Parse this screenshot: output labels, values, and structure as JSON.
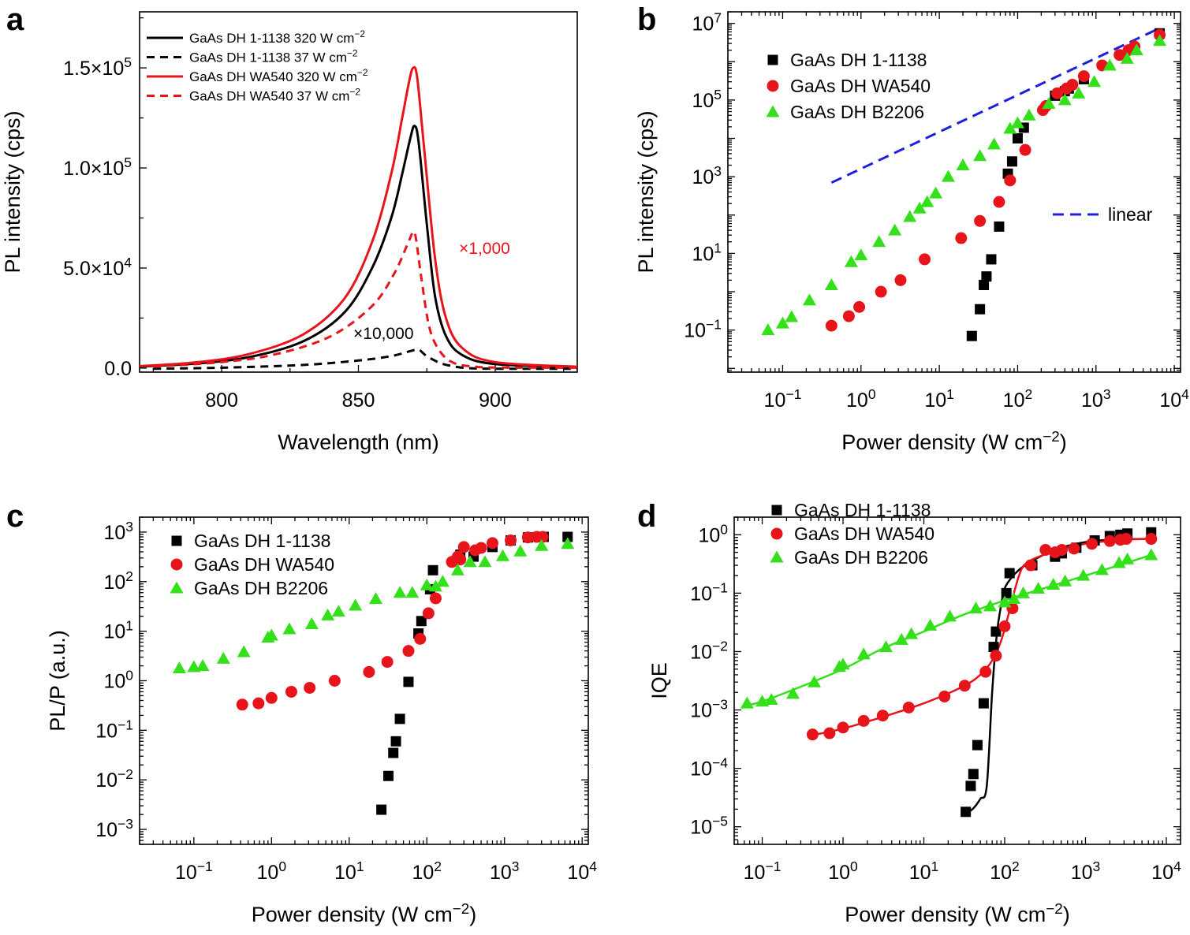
{
  "chart_data": [
    {
      "panel": "a",
      "type": "line",
      "title": "",
      "xlabel": "Wavelength (nm)",
      "ylabel": "PL intensity (cps)",
      "xlim": [
        770,
        930
      ],
      "ylim": [
        -2000,
        178000
      ],
      "x_ticks": [
        "800",
        "850",
        "900"
      ],
      "y_ticks": [
        {
          "mantissa": "0.0",
          "exp": ""
        },
        {
          "mantissa": "5.0×10",
          "exp": "4"
        },
        {
          "mantissa": "1.0×10",
          "exp": "5"
        },
        {
          "mantissa": "1.5×10",
          "exp": "5"
        }
      ],
      "legend_position": "top-left",
      "annotations": [
        {
          "text": "×1,000",
          "color": "#e8141c"
        },
        {
          "text": "×10,000",
          "color": "#000000"
        }
      ],
      "series": [
        {
          "name_text": "GaAs DH 1-1138 320 W cm",
          "name_exp": "−2",
          "color": "#000000",
          "dash": "solid",
          "x": [
            770,
            790,
            810,
            830,
            845,
            855,
            862,
            866,
            869,
            870.5,
            872,
            875,
            878,
            882,
            888,
            900,
            930
          ],
          "y": [
            800,
            2200,
            5500,
            13500,
            28000,
            50000,
            75000,
            97000,
            115000,
            121000,
            113000,
            72000,
            36000,
            16000,
            6500,
            2000,
            500
          ]
        },
        {
          "name_text": "GaAs DH 1-1138 37 W cm",
          "name_exp": "−2",
          "color": "#000000",
          "dash": "dashed",
          "x": [
            775,
            800,
            830,
            850,
            862,
            869,
            872,
            875,
            880,
            885,
            890,
            900,
            930
          ],
          "y": [
            -300,
            200,
            1600,
            3800,
            6000,
            8500,
            9200,
            6000,
            2500,
            800,
            0,
            -300,
            -300
          ]
        },
        {
          "name_text": "GaAs DH WA540 320 W cm",
          "name_exp": "−2",
          "color": "#e8141c",
          "dash": "solid",
          "x": [
            770,
            790,
            810,
            830,
            845,
            855,
            862,
            866,
            868.5,
            870,
            871.5,
            874,
            878,
            882,
            888,
            900,
            930
          ],
          "y": [
            1000,
            2800,
            7000,
            17000,
            35000,
            63000,
            97000,
            125000,
            143000,
            150000,
            145000,
            110000,
            55000,
            25000,
            10000,
            3000,
            700
          ]
        },
        {
          "name_text": "GaAs DH WA540 37 W cm",
          "name_exp": "−2",
          "color": "#e8141c",
          "dash": "dashed",
          "x": [
            775,
            800,
            820,
            840,
            855,
            863,
            868,
            870,
            871,
            873,
            876,
            880,
            885,
            892,
            900,
            930
          ],
          "y": [
            800,
            3000,
            7000,
            16000,
            31000,
            47000,
            62000,
            68000,
            65000,
            45000,
            20000,
            8000,
            2500,
            800,
            300,
            200
          ]
        }
      ]
    },
    {
      "panel": "b",
      "type": "scatter",
      "title": "",
      "xlabel_text": "Power density (W cm",
      "xlabel_exp": "−2",
      "xlabel_close": ")",
      "ylabel": "PL intensity (cps)",
      "x_scale": "log",
      "y_scale": "log",
      "xlim": [
        0.02,
        12000
      ],
      "ylim": [
        0.008,
        20000000
      ],
      "x_ticks": [
        {
          "base": "10",
          "exp": "−1"
        },
        {
          "base": "10",
          "exp": "0"
        },
        {
          "base": "10",
          "exp": "1"
        },
        {
          "base": "10",
          "exp": "2"
        },
        {
          "base": "10",
          "exp": "3"
        },
        {
          "base": "10",
          "exp": "4"
        }
      ],
      "y_ticks": [
        {
          "base": "10",
          "exp": "−1"
        },
        {
          "base": "10",
          "exp": "1"
        },
        {
          "base": "10",
          "exp": "3"
        },
        {
          "base": "10",
          "exp": "5"
        },
        {
          "base": "10",
          "exp": "7"
        }
      ],
      "legend_position": "top-left",
      "reference_line": {
        "name": "linear",
        "color": "#1f1fe0",
        "x": [
          0.42,
          6500
        ],
        "y": [
          700,
          7500000
        ]
      },
      "series": [
        {
          "name": "GaAs DH 1-1138",
          "marker": "square",
          "color": "#000000",
          "x": [
            26,
            33,
            37,
            40,
            46,
            58,
            75,
            85,
            100,
            120,
            300,
            400,
            450,
            700,
            6500
          ],
          "y": [
            0.07,
            0.35,
            1.5,
            2.5,
            7,
            50,
            1200,
            2500,
            10000,
            19000,
            130000,
            170000,
            200000,
            350000,
            5500000
          ]
        },
        {
          "name": "GaAs DH WA540",
          "marker": "circle",
          "color": "#e8141c",
          "x": [
            0.42,
            0.7,
            0.95,
            1.8,
            3.2,
            6.5,
            19,
            33,
            58,
            80,
            125,
            210,
            230,
            320,
            420,
            500,
            700,
            1200,
            2000,
            2600,
            3100,
            6500
          ],
          "y": [
            0.13,
            0.23,
            0.4,
            1,
            2,
            7,
            25,
            70,
            220,
            800,
            5000,
            55000,
            70000,
            150000,
            200000,
            250000,
            420000,
            800000,
            1500000,
            2000000,
            2500000,
            5000000
          ]
        },
        {
          "name": "GaAs DH B2206",
          "marker": "triangle",
          "color": "#33e01a",
          "x": [
            0.065,
            0.1,
            0.13,
            0.22,
            0.42,
            0.75,
            1.0,
            1.7,
            2.7,
            4.2,
            5.6,
            7.0,
            9.0,
            13,
            20,
            33,
            50,
            80,
            100,
            140,
            250,
            400,
            600,
            950,
            1500,
            2500,
            3300,
            6500
          ],
          "y": [
            0.1,
            0.15,
            0.22,
            0.6,
            1.5,
            6,
            9,
            20,
            40,
            90,
            150,
            220,
            370,
            1000,
            2000,
            3500,
            7000,
            18000,
            25000,
            40000,
            80000,
            100000,
            150000,
            300000,
            800000,
            1200000,
            2000000,
            3500000
          ]
        }
      ]
    },
    {
      "panel": "c",
      "type": "scatter",
      "title": "",
      "xlabel_text": "Power density (W cm",
      "xlabel_exp": "−2",
      "xlabel_close": ")",
      "ylabel": "PL/P (a.u.)",
      "x_scale": "log",
      "y_scale": "log",
      "xlim": [
        0.02,
        12000
      ],
      "ylim": [
        0.0005,
        2000
      ],
      "x_ticks": [
        {
          "base": "10",
          "exp": "−1"
        },
        {
          "base": "10",
          "exp": "0"
        },
        {
          "base": "10",
          "exp": "1"
        },
        {
          "base": "10",
          "exp": "2"
        },
        {
          "base": "10",
          "exp": "3"
        },
        {
          "base": "10",
          "exp": "4"
        }
      ],
      "y_ticks": [
        {
          "base": "10",
          "exp": "−3"
        },
        {
          "base": "10",
          "exp": "−2"
        },
        {
          "base": "10",
          "exp": "−1"
        },
        {
          "base": "10",
          "exp": "0"
        },
        {
          "base": "10",
          "exp": "1"
        },
        {
          "base": "10",
          "exp": "2"
        },
        {
          "base": "10",
          "exp": "3"
        }
      ],
      "legend_position": "top-left",
      "series": [
        {
          "name": "GaAs DH 1-1138",
          "marker": "square",
          "color": "#000000",
          "x": [
            26,
            32,
            37,
            40,
            45,
            58,
            78,
            85,
            110,
            120,
            270,
            400,
            700,
            1200,
            2000,
            3200,
            6500
          ],
          "y": [
            0.0025,
            0.012,
            0.035,
            0.06,
            0.17,
            0.95,
            9,
            16,
            70,
            170,
            350,
            320,
            500,
            680,
            780,
            800,
            800
          ]
        },
        {
          "name": "GaAs DH WA540",
          "marker": "circle",
          "color": "#e8141c",
          "x": [
            0.42,
            0.68,
            1.0,
            1.8,
            3.1,
            6.5,
            18,
            31,
            58,
            82,
            105,
            130,
            210,
            250,
            270,
            300,
            420,
            500,
            700,
            1200,
            2000,
            2600,
            3100
          ],
          "y": [
            0.33,
            0.35,
            0.45,
            0.6,
            0.72,
            1.0,
            1.5,
            2.4,
            4.0,
            7.0,
            23,
            46,
            250,
            320,
            280,
            500,
            430,
            480,
            600,
            680,
            780,
            800,
            800
          ]
        },
        {
          "name": "GaAs DH B2206",
          "marker": "triangle",
          "color": "#33e01a",
          "x": [
            0.065,
            0.1,
            0.13,
            0.24,
            0.44,
            0.9,
            1.0,
            1.7,
            3.3,
            5.3,
            7.3,
            12,
            22,
            45,
            65,
            100,
            130,
            160,
            250,
            360,
            560,
            950,
            1600,
            3000,
            6500
          ],
          "y": [
            1.8,
            1.9,
            2.0,
            2.8,
            3.8,
            7.5,
            8.2,
            11,
            14,
            21,
            25,
            33,
            45,
            60,
            60,
            85,
            80,
            100,
            170,
            250,
            250,
            330,
            410,
            530,
            580
          ]
        }
      ]
    },
    {
      "panel": "d",
      "type": "scatter",
      "title": "",
      "xlabel_text": "Power density (W cm",
      "xlabel_exp": "−2",
      "xlabel_close": ")",
      "ylabel": "IQE",
      "x_scale": "log",
      "y_scale": "log",
      "xlim": [
        0.045,
        15000
      ],
      "ylim": [
        5e-06,
        2
      ],
      "x_ticks": [
        {
          "base": "10",
          "exp": "−1"
        },
        {
          "base": "10",
          "exp": "0"
        },
        {
          "base": "10",
          "exp": "1"
        },
        {
          "base": "10",
          "exp": "2"
        },
        {
          "base": "10",
          "exp": "3"
        },
        {
          "base": "10",
          "exp": "4"
        }
      ],
      "y_ticks": [
        {
          "base": "10",
          "exp": "−5"
        },
        {
          "base": "10",
          "exp": "−4"
        },
        {
          "base": "10",
          "exp": "−3"
        },
        {
          "base": "10",
          "exp": "−2"
        },
        {
          "base": "10",
          "exp": "−1"
        },
        {
          "base": "10",
          "exp": "0"
        }
      ],
      "legend_position": "top-left",
      "series": [
        {
          "name": "GaAs DH 1-1138",
          "marker": "square",
          "color": "#000000",
          "x": [
            33,
            38,
            41,
            46,
            55,
            73,
            78,
            105,
            115,
            220,
            420,
            510,
            770,
            1300,
            2000,
            2700,
            3300,
            6500
          ],
          "y": [
            1.8e-05,
            5e-05,
            8e-05,
            0.00025,
            0.0013,
            0.012,
            0.022,
            0.1,
            0.22,
            0.3,
            0.42,
            0.48,
            0.6,
            0.8,
            0.95,
            1.0,
            1.05,
            1.1
          ],
          "fit": {
            "x": [
              33,
              40,
              50,
              60,
              70,
              80,
              90,
              100,
              120,
              150,
              200,
              300,
              500,
              1000,
              2000,
              6500
            ],
            "y": [
              1.7e-05,
              2e-05,
              3e-05,
              5e-05,
              0.002,
              0.02,
              0.06,
              0.12,
              0.18,
              0.25,
              0.33,
              0.45,
              0.6,
              0.75,
              0.82,
              0.85
            ]
          }
        },
        {
          "name": "GaAs DH WA540",
          "marker": "circle",
          "color": "#e8141c",
          "x": [
            0.42,
            0.68,
            1.0,
            1.8,
            3.1,
            6.5,
            18,
            32,
            58,
            78,
            100,
            125,
            210,
            320,
            420,
            510,
            720,
            1200,
            2000,
            2700,
            3200,
            6500
          ],
          "y": [
            0.00038,
            0.0004,
            0.0005,
            0.00065,
            0.0008,
            0.0011,
            0.0017,
            0.0026,
            0.0045,
            0.0085,
            0.027,
            0.055,
            0.3,
            0.55,
            0.5,
            0.55,
            0.58,
            0.7,
            0.78,
            0.82,
            0.85,
            0.85
          ],
          "fit": {
            "x": [
              0.42,
              1,
              3,
              10,
              30,
              50,
              70,
              90,
              110,
              130,
              160,
              200,
              300,
              500,
              1000,
              3000,
              6500
            ],
            "y": [
              0.00037,
              0.00048,
              0.00075,
              0.0013,
              0.0025,
              0.004,
              0.007,
              0.015,
              0.04,
              0.1,
              0.25,
              0.35,
              0.45,
              0.55,
              0.7,
              0.82,
              0.85
            ]
          }
        },
        {
          "name": "GaAs DH B2206",
          "marker": "triangle",
          "color": "#33e01a",
          "x": [
            0.065,
            0.1,
            0.13,
            0.24,
            0.44,
            0.9,
            1.0,
            1.8,
            3.4,
            5.3,
            7.0,
            12,
            21,
            44,
            66,
            100,
            130,
            170,
            260,
            400,
            560,
            940,
            1600,
            2600,
            3300,
            6500
          ],
          "y": [
            0.0013,
            0.0014,
            0.0015,
            0.0019,
            0.003,
            0.0055,
            0.006,
            0.009,
            0.012,
            0.016,
            0.02,
            0.028,
            0.04,
            0.055,
            0.06,
            0.07,
            0.08,
            0.1,
            0.12,
            0.14,
            0.16,
            0.2,
            0.25,
            0.33,
            0.38,
            0.45
          ],
          "fit": {
            "x": [
              0.065,
              0.1,
              0.3,
              1,
              3,
              10,
              30,
              100,
              300,
              1000,
              3000,
              6500
            ],
            "y": [
              0.0012,
              0.0014,
              0.0025,
              0.005,
              0.011,
              0.022,
              0.042,
              0.075,
              0.12,
              0.2,
              0.32,
              0.45
            ]
          }
        }
      ]
    }
  ],
  "panels": [
    {
      "letter": "a"
    },
    {
      "letter": "b"
    },
    {
      "letter": "c"
    },
    {
      "letter": "d"
    }
  ]
}
